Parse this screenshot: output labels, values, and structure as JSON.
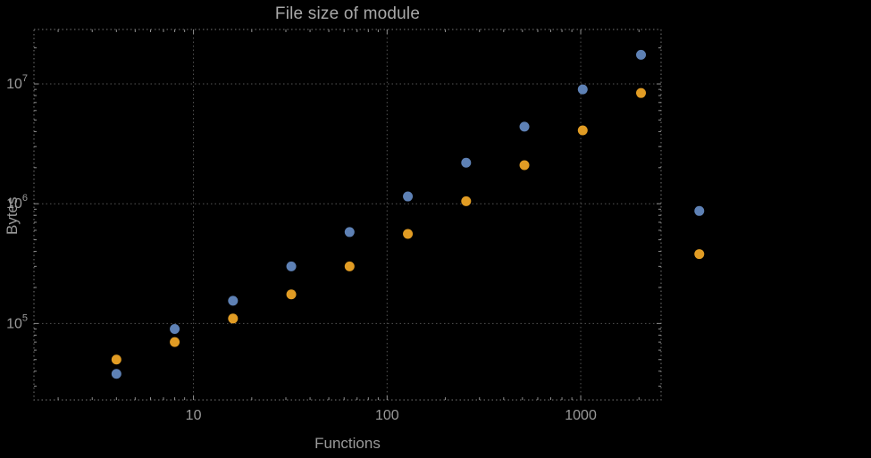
{
  "chart_data": {
    "type": "scatter",
    "title": "File size of module",
    "xlabel": "Functions",
    "ylabel": "Bytes",
    "x_scale": "log",
    "y_scale": "log",
    "xlim": [
      1.5,
      2600
    ],
    "ylim": [
      23000,
      28500000
    ],
    "grid": "dotted, major ticks only",
    "legend": "none",
    "x": [
      4,
      8,
      16,
      32,
      64,
      128,
      256,
      512,
      1024,
      2048,
      4096
    ],
    "series": [
      {
        "name": "series-1-blue",
        "color": "#5e81b5",
        "values": [
          38000,
          90000,
          155000,
          300000,
          580000,
          1150000,
          2200000,
          4400000,
          9000000,
          17500000,
          870000
        ]
      },
      {
        "name": "series-2-orange",
        "color": "#e19c24",
        "values": [
          50000,
          70000,
          110000,
          175000,
          300000,
          560000,
          1050000,
          2100000,
          4100000,
          8400000,
          380000
        ]
      }
    ],
    "x_ticks": {
      "values": [
        10,
        100,
        1000
      ],
      "labels": [
        "10",
        "100",
        "1000"
      ]
    },
    "y_ticks": {
      "values": [
        100000,
        1000000,
        10000000
      ],
      "labels": [
        "10^5",
        "10^6",
        "10^7"
      ],
      "base": "10",
      "exponents": [
        "5",
        "6",
        "7"
      ]
    },
    "colors": {
      "background": "#000000",
      "frame": "#606060",
      "gridline": "#545454",
      "tick": "#8f8f8f",
      "text": "#9a9a9a"
    }
  }
}
